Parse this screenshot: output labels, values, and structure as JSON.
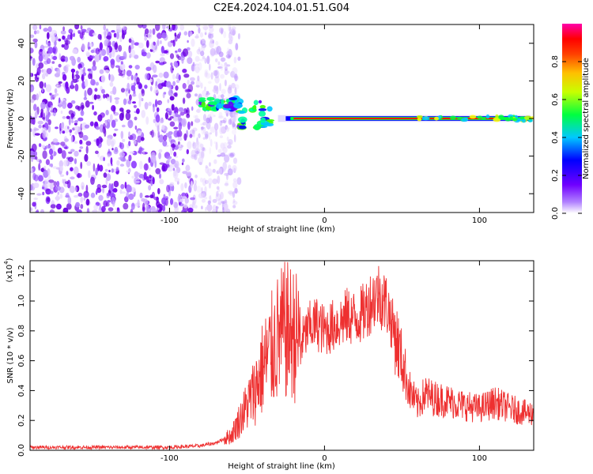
{
  "title": "C2E4.2024.104.01.51.G04",
  "colors": {
    "snr_line": "#ee3030",
    "axis": "#000000",
    "background": "#ffffff"
  },
  "chart_data": [
    {
      "type": "heatmap",
      "xlabel": "Height of straight line (km)",
      "ylabel": "Frequency (Hz)",
      "xlim": [
        -190,
        135
      ],
      "ylim": [
        -50,
        50
      ],
      "x_ticks": [
        -100,
        0,
        100
      ],
      "y_ticks": [
        -40,
        -20,
        0,
        20,
        40
      ],
      "grid": false,
      "colorbar": {
        "label": "Normalized spectral amplitude",
        "range": [
          0.0,
          1.0
        ],
        "ticks": [
          "0.0",
          "0.2",
          "0.4",
          "0.6",
          "0.8"
        ],
        "colormap": [
          "#ffffff",
          "#8b00ff",
          "#0000ff",
          "#00c8ff",
          "#00ff00",
          "#ffff00",
          "#ff8000",
          "#ff0000",
          "#ff00aa"
        ]
      },
      "features": [
        {
          "description": "scattered purple noise",
          "x_range": [
            -190,
            -75
          ],
          "freq_range": [
            -50,
            50
          ],
          "amplitude": 0.1
        },
        {
          "description": "green/cyan onset region",
          "x_range": [
            -80,
            -30
          ],
          "freq_center": [
            8,
            0
          ],
          "amplitude": 0.45
        },
        {
          "description": "red narrow carrier line",
          "x_range": [
            -20,
            110
          ],
          "freq_center": 0,
          "amplitude": 0.9
        },
        {
          "description": "green tail",
          "x_range": [
            60,
            135
          ],
          "freq_center": 0,
          "amplitude": 0.55
        }
      ]
    },
    {
      "type": "line",
      "xlabel": "Height of straight line (km)",
      "ylabel": "SNR (10 * v/v)",
      "y_multiplier": "(x10",
      "y_multiplier_exp": "4",
      "xlim": [
        -190,
        135
      ],
      "ylim": [
        0,
        1.27
      ],
      "x_ticks": [
        -100,
        0,
        100
      ],
      "y_ticks": [
        "0.0",
        "0.2",
        "0.4",
        "0.6",
        "0.8",
        "1.0",
        "1.2"
      ],
      "grid": false,
      "series": [
        {
          "x": [
            -190,
            -160,
            -130,
            -100,
            -80,
            -70,
            -60,
            -55,
            -50,
            -45,
            -40,
            -35,
            -30,
            -25,
            -20,
            -15,
            -10,
            -5,
            0,
            5,
            10,
            15,
            20,
            25,
            30,
            35,
            40,
            45,
            50,
            55,
            60,
            65,
            70,
            80,
            90,
            100,
            110,
            120,
            130,
            135
          ],
          "y": [
            0.02,
            0.02,
            0.02,
            0.02,
            0.03,
            0.05,
            0.1,
            0.2,
            0.3,
            0.4,
            0.55,
            0.65,
            0.75,
            0.8,
            0.78,
            0.72,
            0.82,
            0.85,
            0.8,
            0.83,
            0.86,
            0.9,
            0.88,
            0.92,
            1.0,
            1.05,
            0.98,
            0.8,
            0.6,
            0.4,
            0.3,
            0.38,
            0.35,
            0.33,
            0.3,
            0.28,
            0.32,
            0.28,
            0.25,
            0.25
          ]
        }
      ]
    }
  ]
}
